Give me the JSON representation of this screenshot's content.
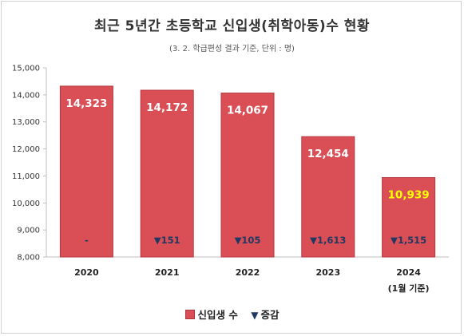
{
  "chart_data": {
    "type": "bar",
    "title": "최근 5년간 초등학교 신입생(취학아동)수 현황",
    "subtitle": "(3. 2. 학급편성 결과 기준, 단위 : 명)",
    "categories": [
      "2020",
      "2021",
      "2022",
      "2023",
      "2024"
    ],
    "category_sublabels": [
      "",
      "",
      "",
      "",
      "(1월 기준)"
    ],
    "series": [
      {
        "name": "신입생 수",
        "values": [
          14323,
          14172,
          14067,
          12454,
          10939
        ],
        "labels": [
          "14,323",
          "14,172",
          "14,067",
          "12,454",
          "10,939"
        ],
        "color": "#d94f55"
      },
      {
        "name": "증감",
        "labels": [
          "-",
          "▼151",
          "▼105",
          "▼1,613",
          "▼1,515"
        ],
        "color": "#1f3864"
      }
    ],
    "highlight_label_color": "#ffff00",
    "ylim": [
      8000,
      15000
    ],
    "yticks": [
      8000,
      9000,
      10000,
      11000,
      12000,
      13000,
      14000,
      15000
    ],
    "ytick_labels": [
      "8,000",
      "9,000",
      "10,000",
      "11,000",
      "12,000",
      "13,000",
      "14,000",
      "15,000"
    ],
    "grid": false,
    "legend_position": "bottom",
    "legend": [
      {
        "label": "신입생 수",
        "marker": "square"
      },
      {
        "label": "증감",
        "marker": "▼"
      }
    ]
  }
}
